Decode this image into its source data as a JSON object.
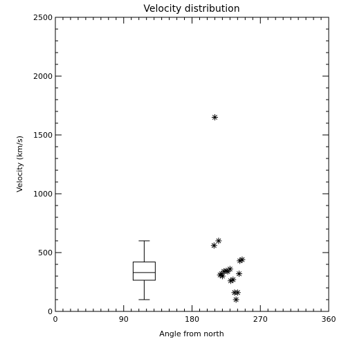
{
  "chart_data": {
    "type": "scatter",
    "title": "Velocity distribution",
    "xlabel": "Angle from north",
    "ylabel": "Velocity (km/s)",
    "xlim": [
      0,
      360
    ],
    "ylim": [
      0,
      2500
    ],
    "x_ticks": [
      "0",
      "90",
      "180",
      "270",
      "360"
    ],
    "y_ticks": [
      "0",
      "500",
      "1000",
      "1500",
      "2000",
      "2500"
    ],
    "grid": false,
    "marker": "asterisk",
    "points": [
      {
        "x": 210,
        "y": 1650
      },
      {
        "x": 209,
        "y": 560
      },
      {
        "x": 215,
        "y": 600
      },
      {
        "x": 217,
        "y": 310
      },
      {
        "x": 219,
        "y": 320
      },
      {
        "x": 220,
        "y": 300
      },
      {
        "x": 222,
        "y": 340
      },
      {
        "x": 225,
        "y": 345
      },
      {
        "x": 227,
        "y": 340
      },
      {
        "x": 230,
        "y": 360
      },
      {
        "x": 231,
        "y": 260
      },
      {
        "x": 234,
        "y": 270
      },
      {
        "x": 236,
        "y": 160
      },
      {
        "x": 238,
        "y": 100
      },
      {
        "x": 240,
        "y": 160
      },
      {
        "x": 242,
        "y": 320
      },
      {
        "x": 243,
        "y": 430
      },
      {
        "x": 246,
        "y": 440
      }
    ],
    "boxplot": {
      "x": 117,
      "min": 100,
      "q1": 265,
      "median": 330,
      "q3": 420,
      "max": 600
    }
  }
}
